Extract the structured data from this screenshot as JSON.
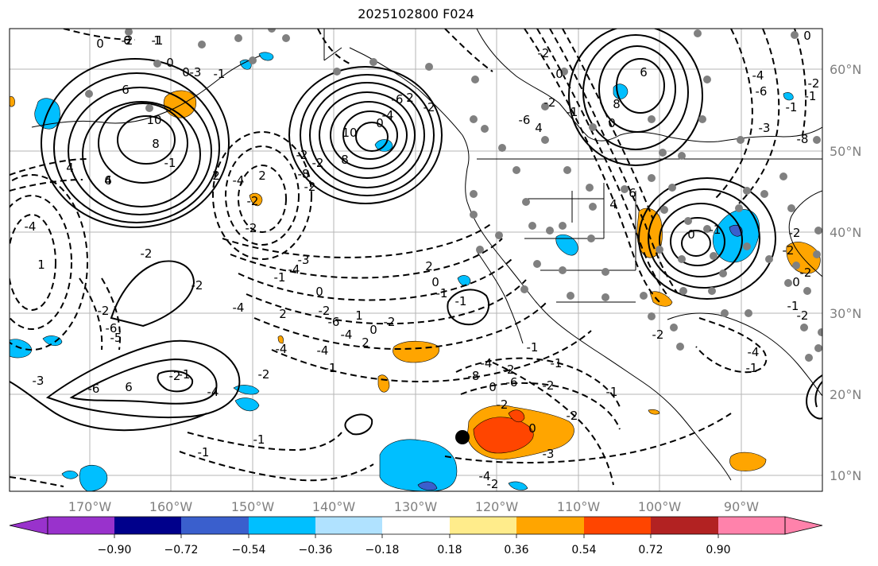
{
  "map": {
    "title": "2025102800 F024",
    "lon_labels": [
      "170°W",
      "160°W",
      "150°W",
      "140°W",
      "130°W",
      "120°W",
      "110°W",
      "100°W",
      "90°W"
    ],
    "lat_labels": [
      "60°N",
      "50°N",
      "40°N",
      "30°N",
      "20°N",
      "10°N"
    ],
    "contour_labels": [
      "0",
      "1",
      "0",
      "6",
      "10",
      "8",
      "6",
      "4",
      "0",
      "-3",
      "-4",
      "1",
      "0",
      "-1",
      "-2",
      "2",
      "-1",
      "2",
      "-2",
      "-4",
      "4",
      "-2",
      "-2",
      "10",
      "8",
      "-2",
      "-8",
      "-6",
      "-4",
      "0",
      "2",
      "-2",
      "6",
      "8",
      "-2",
      "-1",
      "-1",
      "0",
      "-4",
      "-6",
      "-8",
      "-3",
      "2",
      "0",
      "-1",
      "-1",
      "1",
      "-2",
      "0",
      "2",
      "-1",
      "-4",
      "-3",
      "2",
      "0",
      "-2",
      "-6",
      "-4",
      "-4",
      "-1",
      "-4",
      "-2",
      "-4",
      "-2",
      "-2",
      "-2",
      "-6",
      "-5",
      "-3",
      "-6",
      "6",
      "-2",
      "-1",
      "-4",
      "-1",
      "-1",
      "-6",
      "4",
      "-2",
      "0",
      "-2",
      "-1",
      "0",
      "6",
      "4",
      "0",
      "-1",
      "-2",
      "-2",
      "0",
      "-2",
      "-1",
      "-2",
      "-4",
      "-1",
      "-2",
      "-1",
      "-2",
      "0",
      "-6",
      "-8",
      "0",
      "-1",
      "-2",
      "-1",
      "-2",
      "-4",
      "-2",
      "-4",
      "-2",
      "-3",
      "-2",
      "-1"
    ]
  },
  "colorbar": {
    "tick_labels": [
      "−0.90",
      "−0.72",
      "−0.54",
      "−0.36",
      "−0.18",
      "0.18",
      "0.36",
      "0.54",
      "0.72",
      "0.90"
    ],
    "levels": [
      -0.9,
      -0.72,
      -0.54,
      -0.36,
      -0.18,
      0.18,
      0.36,
      0.54,
      0.72,
      0.9
    ],
    "colors": [
      "#9932cc",
      "#00008b",
      "#3a5fcd",
      "#00bfff",
      "#b0e2ff",
      "#ffffff",
      "#ffec8b",
      "#ffa500",
      "#ff4500",
      "#b22222",
      "#ff82ab"
    ]
  }
}
